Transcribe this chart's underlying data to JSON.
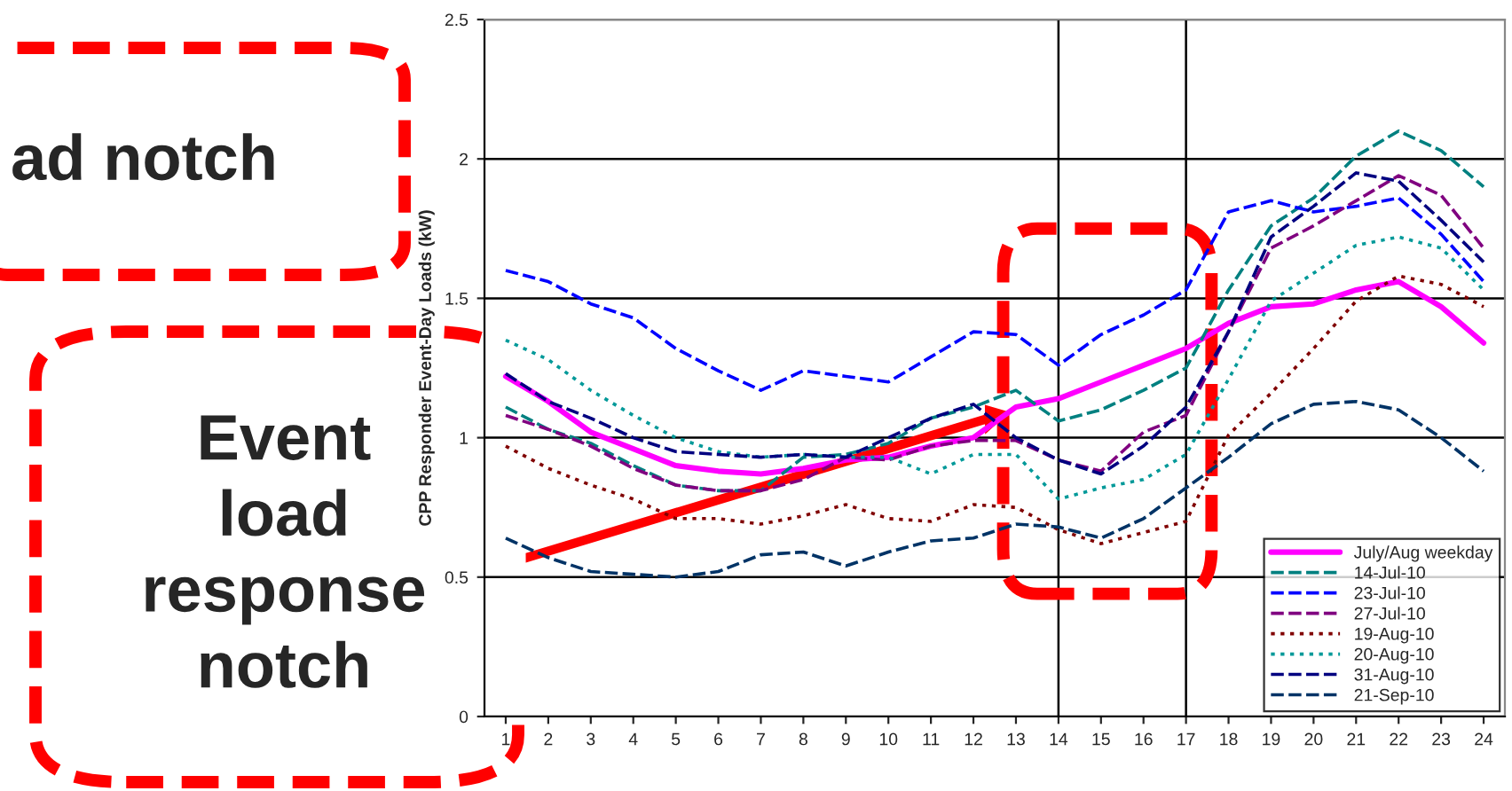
{
  "chart_data": {
    "type": "line",
    "ylabel": "CPP Responder Event-Day Loads (kW)",
    "x": [
      1,
      2,
      3,
      4,
      5,
      6,
      7,
      8,
      9,
      10,
      11,
      12,
      13,
      14,
      15,
      16,
      17,
      18,
      19,
      20,
      21,
      22,
      23,
      24
    ],
    "xlim": [
      0.5,
      24.5
    ],
    "xticks": [
      1,
      2,
      3,
      4,
      5,
      6,
      7,
      8,
      9,
      10,
      11,
      12,
      13,
      14,
      15,
      16,
      17,
      18,
      19,
      20,
      21,
      22,
      23,
      24
    ],
    "ylim": [
      0,
      2.5
    ],
    "yticks": [
      0,
      0.5,
      1,
      1.5,
      2,
      2.5
    ],
    "grid": "y",
    "legend": "bottom right",
    "marker": "none",
    "ref_lines": [
      {
        "axis": "x",
        "value": 14,
        "color": "#000000"
      },
      {
        "axis": "x",
        "value": 17,
        "color": "#000000"
      }
    ],
    "annotations": [
      "ad notch",
      "Event\nload\nresponse\nnotch"
    ],
    "series": [
      {
        "name": "July/Aug weekday",
        "color": "#ff00ff",
        "line_style": "solid",
        "values": [
          1.22,
          1.13,
          1.02,
          0.96,
          0.9,
          0.88,
          0.87,
          0.89,
          0.92,
          0.93,
          0.97,
          1.0,
          1.11,
          1.14,
          1.2,
          1.26,
          1.32,
          1.41,
          1.47,
          1.48,
          1.53,
          1.56,
          1.47,
          1.34
        ]
      },
      {
        "name": "14-Jul-10",
        "color": "#008080",
        "line_style": "dashed",
        "values": [
          1.11,
          1.03,
          0.98,
          0.9,
          0.83,
          0.81,
          0.81,
          0.93,
          0.94,
          0.98,
          1.07,
          1.11,
          1.17,
          1.06,
          1.1,
          1.17,
          1.25,
          1.53,
          1.76,
          1.86,
          2.01,
          2.1,
          2.03,
          1.9
        ]
      },
      {
        "name": "23-Jul-10",
        "color": "#0000ff",
        "line_style": "dashed",
        "values": [
          1.6,
          1.56,
          1.48,
          1.43,
          1.32,
          1.24,
          1.17,
          1.24,
          1.22,
          1.2,
          1.29,
          1.38,
          1.37,
          1.26,
          1.37,
          1.44,
          1.53,
          1.81,
          1.85,
          1.81,
          1.83,
          1.86,
          1.73,
          1.56
        ]
      },
      {
        "name": "27-Jul-10",
        "color": "#800080",
        "line_style": "dashed",
        "values": [
          1.08,
          1.03,
          0.97,
          0.89,
          0.83,
          0.81,
          0.81,
          0.85,
          0.93,
          0.92,
          0.97,
          0.99,
          0.99,
          0.92,
          0.88,
          1.02,
          1.08,
          1.38,
          1.68,
          1.76,
          1.85,
          1.94,
          1.87,
          1.68
        ]
      },
      {
        "name": "19-Aug-10",
        "color": "#800000",
        "line_style": "dotted",
        "values": [
          0.97,
          0.89,
          0.83,
          0.78,
          0.71,
          0.71,
          0.69,
          0.72,
          0.76,
          0.71,
          0.7,
          0.76,
          0.75,
          0.67,
          0.62,
          0.66,
          0.7,
          1.01,
          1.16,
          1.32,
          1.49,
          1.58,
          1.55,
          1.47
        ]
      },
      {
        "name": "20-Aug-10",
        "color": "#009999",
        "line_style": "dotted",
        "values": [
          1.35,
          1.28,
          1.17,
          1.08,
          1.0,
          0.95,
          0.93,
          0.94,
          0.93,
          0.93,
          0.87,
          0.94,
          0.94,
          0.78,
          0.82,
          0.85,
          0.94,
          1.21,
          1.49,
          1.59,
          1.69,
          1.72,
          1.68,
          1.53
        ]
      },
      {
        "name": "31-Aug-10",
        "color": "#000080",
        "line_style": "dashed",
        "values": [
          1.23,
          1.13,
          1.07,
          1.0,
          0.95,
          0.94,
          0.93,
          0.94,
          0.93,
          1.0,
          1.07,
          1.12,
          1.0,
          0.92,
          0.87,
          0.97,
          1.11,
          1.38,
          1.72,
          1.83,
          1.95,
          1.92,
          1.78,
          1.63
        ]
      },
      {
        "name": "21-Sep-10",
        "color": "#003366",
        "line_style": "dashed",
        "values": [
          0.64,
          0.57,
          0.52,
          0.51,
          0.5,
          0.52,
          0.58,
          0.59,
          0.54,
          0.59,
          0.63,
          0.64,
          0.69,
          0.68,
          0.64,
          0.71,
          0.82,
          0.93,
          1.05,
          1.12,
          1.13,
          1.1,
          1.0,
          0.88
        ]
      }
    ]
  }
}
